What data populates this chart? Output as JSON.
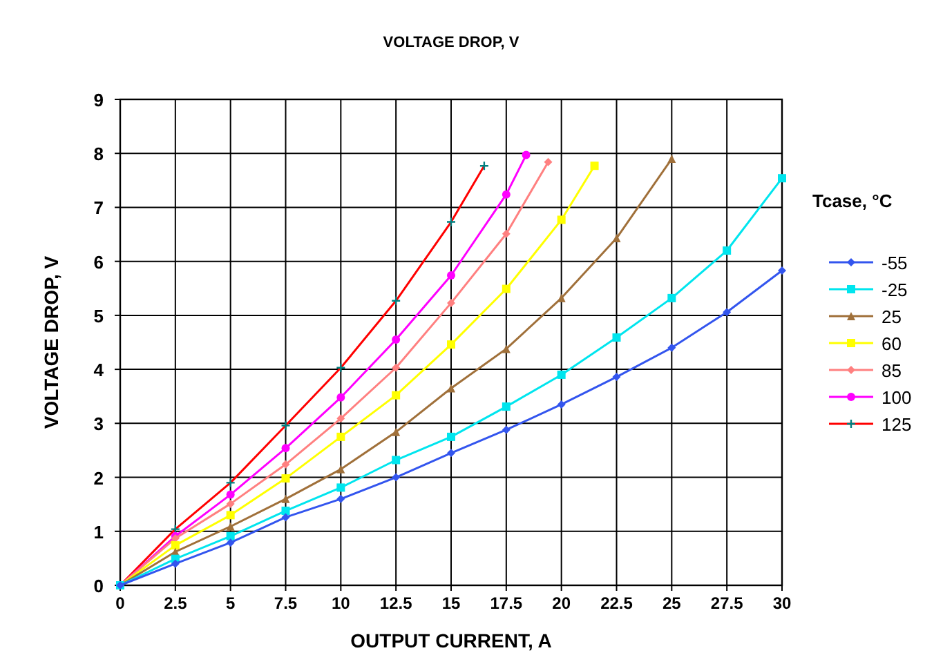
{
  "chart_data": {
    "type": "line",
    "title": "VOLTAGE DROP, V",
    "xlabel": "OUTPUT CURRENT, A",
    "ylabel": "VOLTAGE DROP, V",
    "legend_title": "Tcase, °C",
    "xlim": [
      0,
      30
    ],
    "ylim": [
      0,
      9
    ],
    "xticks": [
      0,
      2.5,
      5,
      7.5,
      10,
      12.5,
      15,
      17.5,
      20,
      22.5,
      25,
      27.5,
      30
    ],
    "yticks": [
      0,
      1,
      2,
      3,
      4,
      5,
      6,
      7,
      8,
      9
    ],
    "grid": true,
    "legend": "right",
    "line_style": "solid",
    "series": [
      {
        "name": "-55",
        "color": "#3355ee",
        "marker": "diamond",
        "x": [
          0,
          2.5,
          5,
          7.5,
          10,
          12.5,
          15,
          17.5,
          20,
          22.5,
          25,
          27.5,
          30
        ],
        "values": [
          0,
          0.4,
          0.79,
          1.26,
          1.6,
          2.0,
          2.45,
          2.88,
          3.35,
          3.86,
          4.4,
          5.06,
          5.83
        ]
      },
      {
        "name": "-25",
        "color": "#00e5ee",
        "marker": "square",
        "x": [
          0,
          2.5,
          5,
          7.5,
          10,
          12.5,
          15,
          17.5,
          20,
          22.5,
          25,
          27.5,
          30
        ],
        "values": [
          0,
          0.49,
          0.91,
          1.38,
          1.81,
          2.32,
          2.75,
          3.31,
          3.9,
          4.59,
          5.32,
          6.2,
          7.54
        ]
      },
      {
        "name": "25",
        "color": "#a0703a",
        "marker": "triangle",
        "x": [
          0,
          2.5,
          5,
          7.5,
          10,
          12.5,
          15,
          17.5,
          20,
          22.5,
          25
        ],
        "values": [
          0,
          0.62,
          1.09,
          1.6,
          2.15,
          2.84,
          3.65,
          4.38,
          5.32,
          6.43,
          7.9
        ]
      },
      {
        "name": "60",
        "color": "#ffff00",
        "marker": "square",
        "x": [
          0,
          2.5,
          5,
          7.5,
          10,
          12.5,
          15,
          17.5,
          20,
          21.5
        ],
        "values": [
          0,
          0.74,
          1.3,
          1.98,
          2.75,
          3.52,
          4.46,
          5.49,
          6.77,
          7.77
        ]
      },
      {
        "name": "85",
        "color": "#ff8080",
        "marker": "diamond",
        "x": [
          0,
          2.5,
          5,
          7.5,
          10,
          12.5,
          15,
          17.5,
          19.4
        ],
        "values": [
          0,
          0.87,
          1.51,
          2.24,
          3.09,
          4.03,
          5.23,
          6.51,
          7.84
        ]
      },
      {
        "name": "100",
        "color": "#ff00ff",
        "marker": "circle",
        "x": [
          0,
          2.5,
          5,
          7.5,
          10,
          12.5,
          15,
          17.5,
          18.4
        ],
        "values": [
          0,
          0.91,
          1.68,
          2.54,
          3.48,
          4.55,
          5.74,
          7.24,
          7.97
        ]
      },
      {
        "name": "125",
        "color": "#ff0000",
        "marker": "cross",
        "x": [
          0,
          2.5,
          5,
          7.5,
          10,
          12.5,
          15,
          16.5
        ],
        "values": [
          0,
          1.04,
          1.9,
          2.96,
          4.03,
          5.27,
          6.73,
          7.77
        ]
      }
    ]
  }
}
